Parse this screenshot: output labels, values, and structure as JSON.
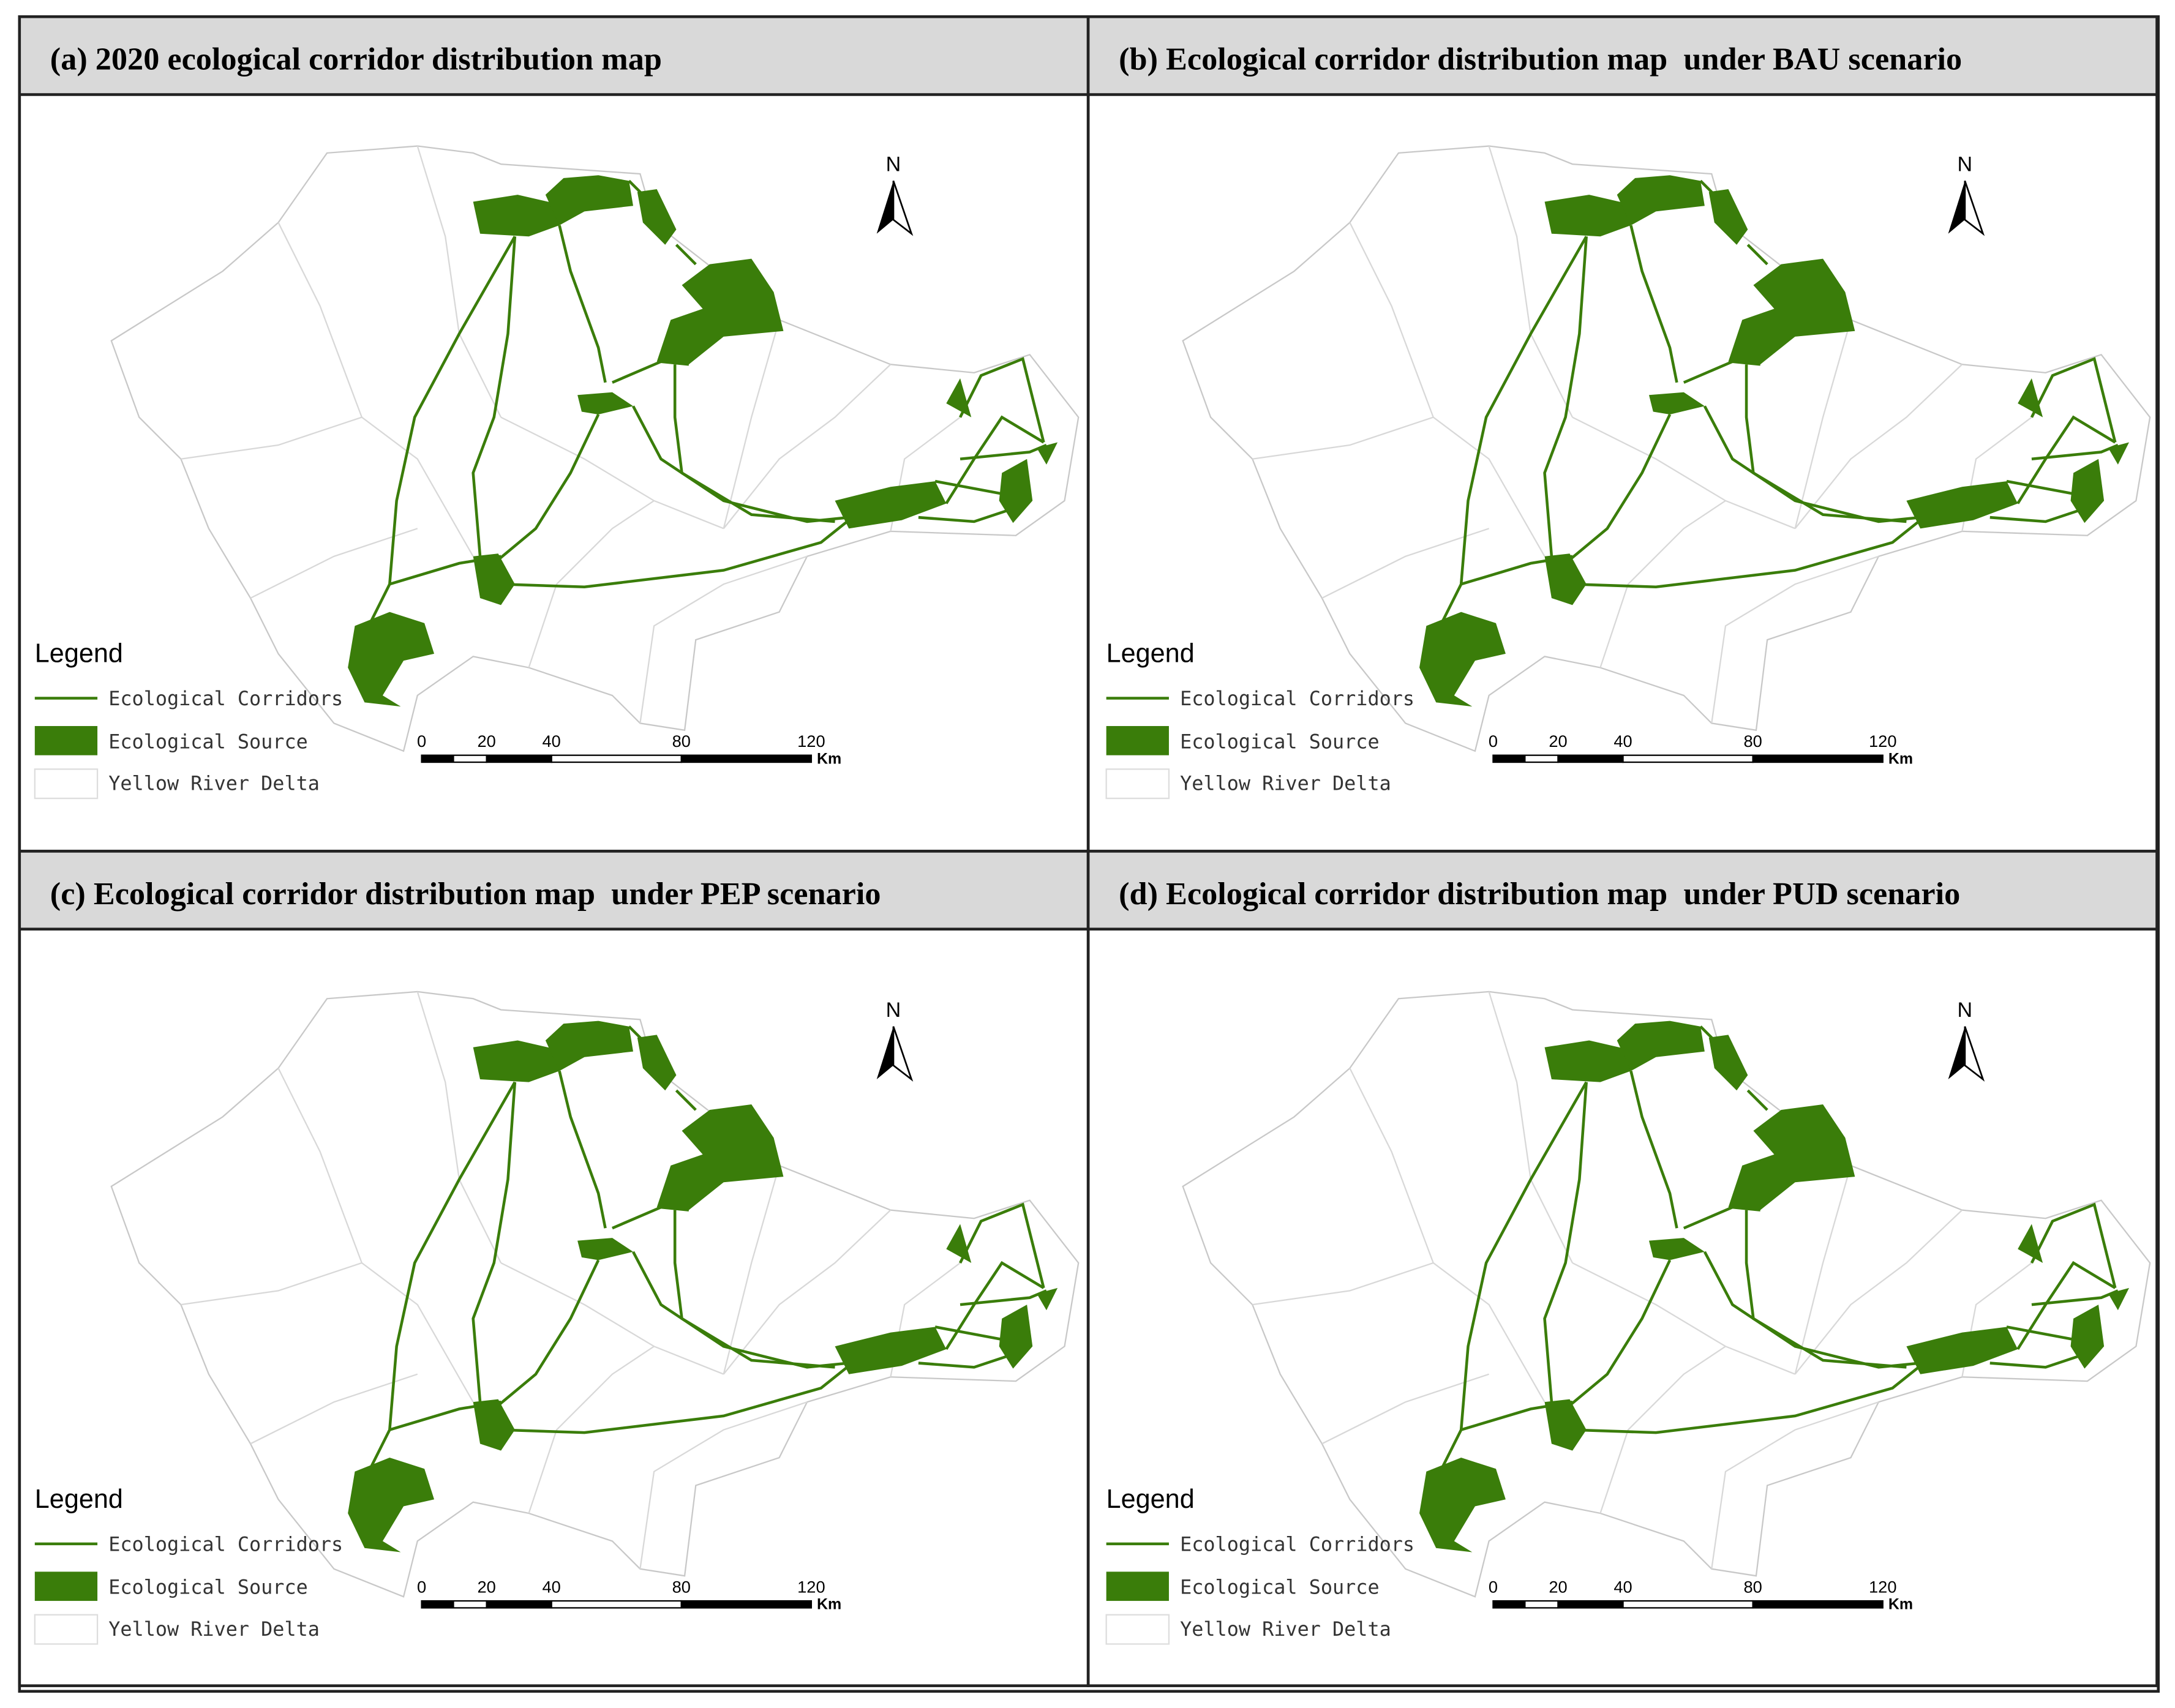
{
  "panels": [
    {
      "title": "(a) 2020 ecological corridor distribution map",
      "north": "N",
      "legend": {
        "title": "Legend",
        "items": [
          "Ecological Corridors",
          "Ecological Source",
          "Yellow River Delta"
        ]
      },
      "scale_bar": {
        "ticks": [
          0,
          20,
          40,
          80,
          120
        ],
        "unit": "Km"
      }
    },
    {
      "title": "(b) Ecological corridor distribution map  under BAU scenario",
      "north": "N",
      "legend": {
        "title": "Legend",
        "items": [
          "Ecological Corridors",
          "Ecological Source",
          "Yellow River Delta"
        ]
      },
      "scale_bar": {
        "ticks": [
          0,
          20,
          40,
          80,
          120
        ],
        "unit": "Km"
      }
    },
    {
      "title": "(c) Ecological corridor distribution map  under PEP scenario",
      "north": "N",
      "legend": {
        "title": "Legend",
        "items": [
          "Ecological Corridors",
          "Ecological Source",
          "Yellow River Delta"
        ]
      },
      "scale_bar": {
        "ticks": [
          0,
          20,
          40,
          80,
          120
        ],
        "unit": "Km"
      }
    },
    {
      "title": "(d) Ecological corridor distribution map  under PUD scenario",
      "north": "N",
      "legend": {
        "title": "Legend",
        "items": [
          "Ecological Corridors",
          "Ecological Source",
          "Yellow River Delta"
        ]
      },
      "scale_bar": {
        "ticks": [
          0,
          20,
          40,
          80,
          120
        ],
        "unit": "Km"
      }
    }
  ]
}
